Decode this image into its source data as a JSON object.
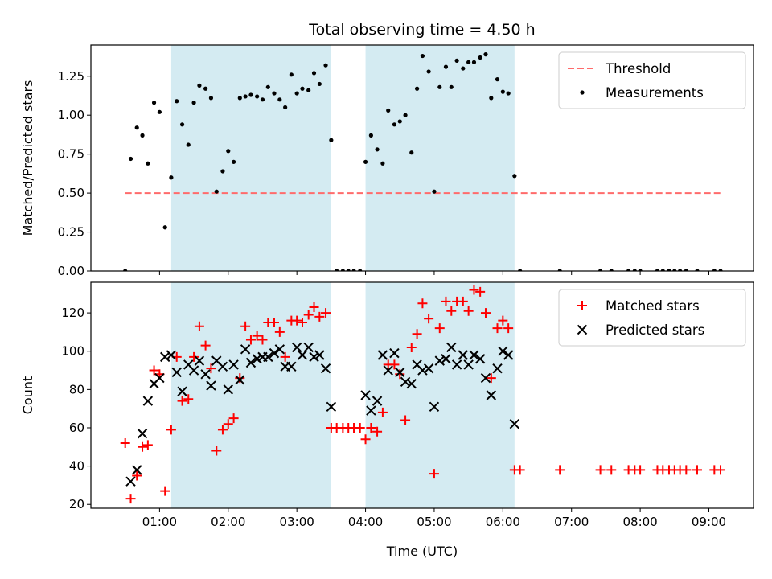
{
  "chart_data": {
    "title": "Total observing time = 4.50 h",
    "xlabel": "Time (UTC)",
    "x_unit": "hours UTC",
    "xlim": [
      0.0,
      9.65
    ],
    "x_ticks": [
      {
        "value": 1,
        "label": "01:00"
      },
      {
        "value": 2,
        "label": "02:00"
      },
      {
        "value": 3,
        "label": "03:00"
      },
      {
        "value": 4,
        "label": "04:00"
      },
      {
        "value": 5,
        "label": "05:00"
      },
      {
        "value": 6,
        "label": "06:00"
      },
      {
        "value": 7,
        "label": "07:00"
      },
      {
        "value": 8,
        "label": "08:00"
      },
      {
        "value": 9,
        "label": "09:00"
      }
    ],
    "shaded_intervals": [
      [
        1.17,
        3.5
      ],
      [
        4.0,
        6.17
      ]
    ],
    "shade_color": "#add8e6",
    "panels": [
      {
        "type": "scatter",
        "ylabel": "Matched/Predicted stars",
        "ylim": [
          0,
          1.45
        ],
        "y_ticks": [
          0,
          0.25,
          0.5,
          0.75,
          1.0,
          1.25
        ],
        "y_tick_labels": [
          "0.00",
          "0.25",
          "0.50",
          "0.75",
          "1.00",
          "1.25"
        ],
        "legend": {
          "position": "top-right"
        },
        "threshold": {
          "name": "Threshold",
          "value": 0.5,
          "x": [
            0.5,
            9.2
          ],
          "color": "#ff6b6b"
        },
        "series": [
          {
            "name": "Measurements",
            "color": "#000000",
            "marker": "dot",
            "points": [
              [
                0.5,
                0.0
              ],
              [
                0.58,
                0.72
              ],
              [
                0.67,
                0.92
              ],
              [
                0.75,
                0.87
              ],
              [
                0.83,
                0.69
              ],
              [
                0.92,
                1.08
              ],
              [
                1.0,
                1.02
              ],
              [
                1.08,
                0.28
              ],
              [
                1.17,
                0.6
              ],
              [
                1.25,
                1.09
              ],
              [
                1.33,
                0.94
              ],
              [
                1.42,
                0.81
              ],
              [
                1.5,
                1.08
              ],
              [
                1.58,
                1.19
              ],
              [
                1.67,
                1.17
              ],
              [
                1.75,
                1.11
              ],
              [
                1.83,
                0.51
              ],
              [
                1.92,
                0.64
              ],
              [
                2.0,
                0.77
              ],
              [
                2.08,
                0.7
              ],
              [
                2.17,
                1.11
              ],
              [
                2.25,
                1.12
              ],
              [
                2.33,
                1.13
              ],
              [
                2.42,
                1.12
              ],
              [
                2.5,
                1.1
              ],
              [
                2.58,
                1.18
              ],
              [
                2.67,
                1.14
              ],
              [
                2.75,
                1.1
              ],
              [
                2.83,
                1.05
              ],
              [
                2.92,
                1.26
              ],
              [
                3.0,
                1.14
              ],
              [
                3.08,
                1.17
              ],
              [
                3.17,
                1.16
              ],
              [
                3.25,
                1.27
              ],
              [
                3.33,
                1.2
              ],
              [
                3.42,
                1.32
              ],
              [
                3.5,
                0.84
              ],
              [
                3.58,
                0.0
              ],
              [
                3.67,
                0.0
              ],
              [
                3.75,
                0.0
              ],
              [
                3.83,
                0.0
              ],
              [
                3.92,
                0.0
              ],
              [
                4.0,
                0.7
              ],
              [
                4.08,
                0.87
              ],
              [
                4.17,
                0.78
              ],
              [
                4.25,
                0.69
              ],
              [
                4.33,
                1.03
              ],
              [
                4.42,
                0.94
              ],
              [
                4.5,
                0.96
              ],
              [
                4.58,
                1.0
              ],
              [
                4.67,
                0.76
              ],
              [
                4.75,
                1.17
              ],
              [
                4.83,
                1.38
              ],
              [
                4.92,
                1.28
              ],
              [
                5.0,
                0.51
              ],
              [
                5.08,
                1.18
              ],
              [
                5.17,
                1.31
              ],
              [
                5.25,
                1.18
              ],
              [
                5.33,
                1.35
              ],
              [
                5.42,
                1.3
              ],
              [
                5.5,
                1.34
              ],
              [
                5.58,
                1.34
              ],
              [
                5.67,
                1.37
              ],
              [
                5.75,
                1.39
              ],
              [
                5.83,
                1.11
              ],
              [
                5.92,
                1.23
              ],
              [
                6.0,
                1.15
              ],
              [
                6.08,
                1.14
              ],
              [
                6.17,
                0.61
              ],
              [
                6.25,
                0.0
              ],
              [
                6.83,
                0.0
              ],
              [
                7.42,
                0.0
              ],
              [
                7.58,
                0.0
              ],
              [
                7.83,
                0.0
              ],
              [
                7.92,
                0.0
              ],
              [
                8.0,
                0.0
              ],
              [
                8.25,
                0.0
              ],
              [
                8.33,
                0.0
              ],
              [
                8.42,
                0.0
              ],
              [
                8.5,
                0.0
              ],
              [
                8.58,
                0.0
              ],
              [
                8.67,
                0.0
              ],
              [
                8.83,
                0.0
              ],
              [
                9.08,
                0.0
              ],
              [
                9.17,
                0.0
              ]
            ]
          }
        ]
      },
      {
        "type": "scatter",
        "ylabel": "Count",
        "ylim": [
          18,
          136
        ],
        "y_ticks": [
          20,
          40,
          60,
          80,
          100,
          120
        ],
        "y_tick_labels": [
          "20",
          "40",
          "60",
          "80",
          "100",
          "120"
        ],
        "legend": {
          "position": "top-right"
        },
        "series": [
          {
            "name": "Matched stars",
            "color": "#ff0000",
            "marker": "plus",
            "points": [
              [
                0.5,
                52
              ],
              [
                0.58,
                23
              ],
              [
                0.67,
                35
              ],
              [
                0.75,
                50
              ],
              [
                0.83,
                51
              ],
              [
                0.92,
                90
              ],
              [
                1.0,
                88
              ],
              [
                1.08,
                27
              ],
              [
                1.17,
                59
              ],
              [
                1.25,
                97
              ],
              [
                1.33,
                74
              ],
              [
                1.42,
                75
              ],
              [
                1.5,
                97
              ],
              [
                1.58,
                113
              ],
              [
                1.67,
                103
              ],
              [
                1.75,
                91
              ],
              [
                1.83,
                48
              ],
              [
                1.92,
                59
              ],
              [
                2.0,
                62
              ],
              [
                2.08,
                65
              ],
              [
                2.17,
                86
              ],
              [
                2.25,
                113
              ],
              [
                2.33,
                106
              ],
              [
                2.42,
                108
              ],
              [
                2.5,
                106
              ],
              [
                2.58,
                115
              ],
              [
                2.67,
                115
              ],
              [
                2.75,
                110
              ],
              [
                2.83,
                97
              ],
              [
                2.92,
                116
              ],
              [
                3.0,
                116
              ],
              [
                3.08,
                115
              ],
              [
                3.17,
                119
              ],
              [
                3.25,
                123
              ],
              [
                3.33,
                118
              ],
              [
                3.42,
                120
              ],
              [
                3.5,
                60
              ],
              [
                3.58,
                60
              ],
              [
                3.67,
                60
              ],
              [
                3.75,
                60
              ],
              [
                3.83,
                60
              ],
              [
                3.92,
                60
              ],
              [
                4.0,
                54
              ],
              [
                4.08,
                60
              ],
              [
                4.17,
                58
              ],
              [
                4.25,
                68
              ],
              [
                4.33,
                93
              ],
              [
                4.42,
                93
              ],
              [
                4.5,
                88
              ],
              [
                4.58,
                64
              ],
              [
                4.67,
                102
              ],
              [
                4.75,
                109
              ],
              [
                4.83,
                125
              ],
              [
                4.92,
                117
              ],
              [
                5.0,
                36
              ],
              [
                5.08,
                112
              ],
              [
                5.17,
                126
              ],
              [
                5.25,
                121
              ],
              [
                5.33,
                126
              ],
              [
                5.42,
                126
              ],
              [
                5.5,
                121
              ],
              [
                5.58,
                132
              ],
              [
                5.67,
                131
              ],
              [
                5.75,
                120
              ],
              [
                5.83,
                86
              ],
              [
                5.92,
                112
              ],
              [
                6.0,
                116
              ],
              [
                6.08,
                112
              ],
              [
                6.17,
                38
              ],
              [
                6.25,
                38
              ],
              [
                6.83,
                38
              ],
              [
                7.42,
                38
              ],
              [
                7.58,
                38
              ],
              [
                7.83,
                38
              ],
              [
                7.92,
                38
              ],
              [
                8.0,
                38
              ],
              [
                8.25,
                38
              ],
              [
                8.33,
                38
              ],
              [
                8.42,
                38
              ],
              [
                8.5,
                38
              ],
              [
                8.58,
                38
              ],
              [
                8.67,
                38
              ],
              [
                8.83,
                38
              ],
              [
                9.08,
                38
              ],
              [
                9.17,
                38
              ]
            ]
          },
          {
            "name": "Predicted stars",
            "color": "#000000",
            "marker": "x",
            "points": [
              [
                0.58,
                32
              ],
              [
                0.67,
                38
              ],
              [
                0.75,
                57
              ],
              [
                0.83,
                74
              ],
              [
                0.92,
                83
              ],
              [
                1.0,
                86
              ],
              [
                1.08,
                97
              ],
              [
                1.17,
                98
              ],
              [
                1.25,
                89
              ],
              [
                1.33,
                79
              ],
              [
                1.42,
                93
              ],
              [
                1.5,
                90
              ],
              [
                1.58,
                95
              ],
              [
                1.67,
                88
              ],
              [
                1.75,
                82
              ],
              [
                1.83,
                95
              ],
              [
                1.92,
                92
              ],
              [
                2.0,
                80
              ],
              [
                2.08,
                93
              ],
              [
                2.17,
                85
              ],
              [
                2.25,
                101
              ],
              [
                2.33,
                94
              ],
              [
                2.42,
                96
              ],
              [
                2.5,
                97
              ],
              [
                2.58,
                97
              ],
              [
                2.67,
                99
              ],
              [
                2.75,
                101
              ],
              [
                2.83,
                92
              ],
              [
                2.92,
                92
              ],
              [
                3.0,
                102
              ],
              [
                3.08,
                98
              ],
              [
                3.17,
                102
              ],
              [
                3.25,
                97
              ],
              [
                3.33,
                98
              ],
              [
                3.42,
                91
              ],
              [
                3.5,
                71
              ],
              [
                4.0,
                77
              ],
              [
                4.08,
                69
              ],
              [
                4.17,
                74
              ],
              [
                4.25,
                98
              ],
              [
                4.33,
                90
              ],
              [
                4.42,
                99
              ],
              [
                4.5,
                89
              ],
              [
                4.58,
                84
              ],
              [
                4.67,
                83
              ],
              [
                4.75,
                93
              ],
              [
                4.83,
                90
              ],
              [
                4.92,
                91
              ],
              [
                5.0,
                71
              ],
              [
                5.08,
                95
              ],
              [
                5.17,
                96
              ],
              [
                5.25,
                102
              ],
              [
                5.33,
                93
              ],
              [
                5.42,
                98
              ],
              [
                5.5,
                93
              ],
              [
                5.58,
                98
              ],
              [
                5.67,
                96
              ],
              [
                5.75,
                86
              ],
              [
                5.83,
                77
              ],
              [
                5.92,
                91
              ],
              [
                6.0,
                100
              ],
              [
                6.08,
                98
              ],
              [
                6.17,
                62
              ]
            ]
          }
        ]
      }
    ]
  }
}
